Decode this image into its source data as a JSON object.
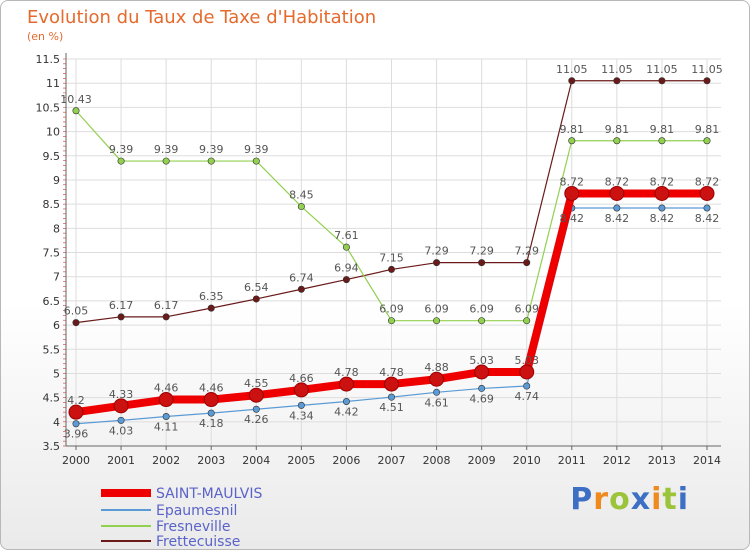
{
  "title": "Evolution du Taux de Taxe d'Habitation",
  "unit_label": "(en %)",
  "brand": "Proxiti",
  "chart_data": {
    "type": "line",
    "title": "Evolution du Taux de Taxe d'Habitation",
    "ylabel": "(en %)",
    "ylim": [
      3.5,
      11.5
    ],
    "yticks": [
      3.5,
      4,
      4.5,
      5,
      5.5,
      6,
      6.5,
      7,
      7.5,
      8,
      8.5,
      9,
      9.5,
      10,
      10.5,
      11,
      11.5
    ],
    "ytick_labels": [
      "3.5",
      "4",
      "4.5",
      "5",
      "5.5",
      "6",
      "6.5",
      "7",
      "7.5",
      "8",
      "8.5",
      "9",
      "9.5",
      "10",
      "10.5",
      "11",
      "11.5"
    ],
    "x": [
      "2000",
      "2001",
      "2002",
      "2003",
      "2004",
      "2005",
      "2006",
      "2007",
      "2008",
      "2009",
      "2010",
      "2011",
      "2012",
      "2013",
      "2014"
    ],
    "grid": true,
    "legend_position": "bottom-left",
    "series": [
      {
        "name": "Frettecuisse",
        "color": "#6b1a1a",
        "width": 1.2,
        "values": [
          6.05,
          6.17,
          6.17,
          6.35,
          6.54,
          6.74,
          6.94,
          7.15,
          7.29,
          7.29,
          7.29,
          11.05,
          11.05,
          11.05,
          11.05
        ],
        "labels": [
          "6.05",
          "6.17",
          "6.17",
          "6.35",
          "6.54",
          "6.74",
          "6.94",
          "7.15",
          "7.29",
          "7.29",
          "7.29",
          "11.05",
          "11.05",
          "11.05",
          "11.05"
        ]
      },
      {
        "name": "Fresneville",
        "color": "#92d050",
        "width": 1.2,
        "values": [
          10.43,
          9.39,
          9.39,
          9.39,
          9.39,
          8.45,
          7.61,
          6.09,
          6.09,
          6.09,
          6.09,
          9.81,
          9.81,
          9.81,
          9.81
        ],
        "labels": [
          "10.43",
          "9.39",
          "9.39",
          "9.39",
          "9.39",
          "8.45",
          "7.61",
          "6.09",
          "6.09",
          "6.09",
          "6.09",
          "9.81",
          "9.81",
          "9.81",
          "9.81"
        ]
      },
      {
        "name": "Epaumesnil",
        "color": "#5b9bd5",
        "width": 1.2,
        "values": [
          3.96,
          4.03,
          4.11,
          4.18,
          4.26,
          4.34,
          4.42,
          4.51,
          4.61,
          4.69,
          4.74,
          8.42,
          8.42,
          8.42,
          8.42
        ],
        "labels": [
          "3.96",
          "4.03",
          "4.11",
          "4.18",
          "4.26",
          "4.34",
          "4.42",
          "4.51",
          "4.61",
          "4.69",
          "4.74",
          "8.42",
          "8.42",
          "8.42",
          "8.42"
        ]
      },
      {
        "name": "SAINT-MAULVIS",
        "color": "#ee0000",
        "width": 8,
        "values": [
          4.2,
          4.33,
          4.46,
          4.46,
          4.55,
          4.66,
          4.78,
          4.78,
          4.88,
          5.03,
          5.03,
          8.72,
          8.72,
          8.72,
          8.72
        ],
        "labels": [
          "4.2",
          "4.33",
          "4.46",
          "4.46",
          "4.55",
          "4.66",
          "4.78",
          "4.78",
          "4.88",
          "5.03",
          "5.03",
          "8.72",
          "8.72",
          "8.72",
          "8.72"
        ]
      }
    ],
    "legend": [
      "SAINT-MAULVIS",
      "Epaumesnil",
      "Fresneville",
      "Frettecuisse"
    ]
  }
}
